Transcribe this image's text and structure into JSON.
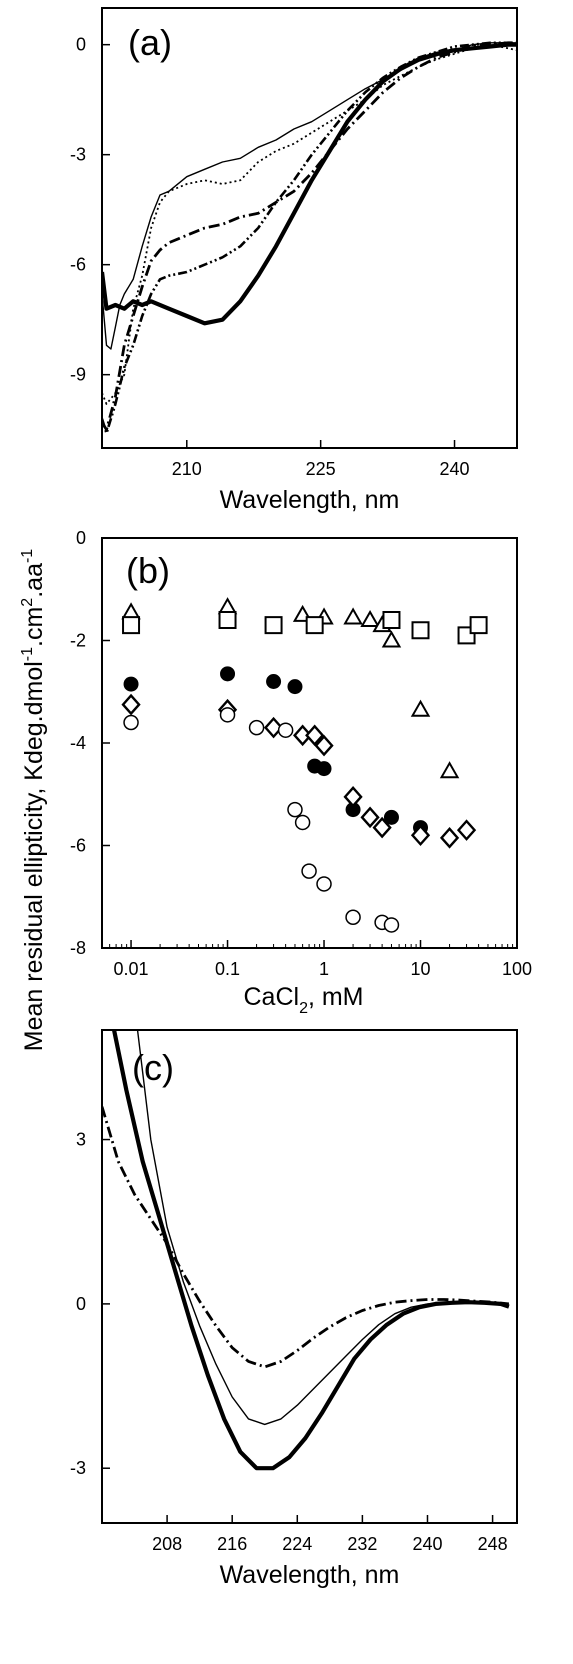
{
  "shared": {
    "ylabel_main": "Mean residual ellipticity, Kdeg.dmol",
    "ylabel_sup1": "-1",
    "ylabel_mid1": ".cm",
    "ylabel_sup2": "2",
    "ylabel_mid2": ".aa",
    "ylabel_sup3": "-1"
  },
  "chart_data": [
    {
      "panel": "(a)",
      "type": "line",
      "xlabel": "Wavelength, nm",
      "ylabel": "",
      "xlim": [
        200.5,
        247
      ],
      "ylim": [
        -11.0,
        1.0
      ],
      "xticks": [
        210,
        225,
        240
      ],
      "yticks": [
        0,
        -3,
        -6,
        -9
      ],
      "grid": false,
      "series": [
        {
          "style": "thin-solid",
          "x": [
            200.5,
            201,
            201.5,
            202,
            202.5,
            203,
            204,
            205,
            206,
            207,
            208,
            210,
            212,
            214,
            216,
            218,
            220,
            222,
            224,
            226,
            228,
            230,
            232,
            234,
            236,
            238,
            240,
            242,
            244,
            246,
            247
          ],
          "y": [
            -6.8,
            -8.2,
            -8.3,
            -7.7,
            -7.1,
            -6.8,
            -6.4,
            -5.5,
            -4.7,
            -4.1,
            -4.0,
            -3.6,
            -3.4,
            -3.2,
            -3.1,
            -2.8,
            -2.6,
            -2.3,
            -2.1,
            -1.8,
            -1.5,
            -1.2,
            -0.95,
            -0.7,
            -0.45,
            -0.3,
            -0.15,
            0.0,
            0.05,
            0.05,
            0.05
          ]
        },
        {
          "style": "dotted",
          "x": [
            200.5,
            201,
            202,
            203,
            204,
            205,
            206,
            207,
            208,
            210,
            212,
            214,
            216,
            218,
            220,
            222,
            224,
            226,
            228,
            230,
            232,
            234,
            236,
            238,
            240,
            242,
            244,
            246,
            247
          ],
          "y": [
            -9.5,
            -9.8,
            -9.5,
            -9.0,
            -7.2,
            -6.3,
            -5.0,
            -4.3,
            -4.0,
            -3.8,
            -3.7,
            -3.8,
            -3.7,
            -3.2,
            -2.9,
            -2.7,
            -2.4,
            -2.1,
            -1.8,
            -1.5,
            -1.1,
            -0.85,
            -0.6,
            -0.4,
            -0.25,
            -0.1,
            0.0,
            -0.1,
            -0.15
          ]
        },
        {
          "style": "dash-dot",
          "x": [
            200.5,
            201,
            202,
            203,
            204,
            205,
            206,
            207,
            208,
            210,
            212,
            214,
            216,
            218,
            220,
            222,
            224,
            226,
            228,
            230,
            232,
            234,
            236,
            238,
            240,
            242,
            244,
            246,
            247
          ],
          "y": [
            -10.3,
            -10.5,
            -9.6,
            -8.2,
            -7.4,
            -6.6,
            -5.9,
            -5.6,
            -5.4,
            -5.2,
            -5.0,
            -4.9,
            -4.7,
            -4.6,
            -4.3,
            -4.0,
            -3.5,
            -2.9,
            -2.3,
            -1.8,
            -1.3,
            -0.9,
            -0.6,
            -0.35,
            -0.2,
            -0.05,
            0.0,
            0.05,
            0.05
          ]
        },
        {
          "style": "dash-dot-dot",
          "x": [
            200.5,
            201,
            202,
            203,
            204,
            205,
            206,
            207,
            208,
            210,
            212,
            214,
            216,
            218,
            220,
            222,
            224,
            226,
            228,
            230,
            232,
            234,
            236,
            238,
            240,
            242,
            244,
            246,
            247
          ],
          "y": [
            -10.2,
            -10.6,
            -9.8,
            -8.8,
            -8.2,
            -7.4,
            -6.8,
            -6.4,
            -6.3,
            -6.2,
            -6.0,
            -5.8,
            -5.5,
            -5.0,
            -4.3,
            -3.7,
            -3.0,
            -2.4,
            -1.8,
            -1.3,
            -0.9,
            -0.6,
            -0.35,
            -0.2,
            -0.05,
            0.0,
            0.05,
            0.05,
            0.05
          ]
        },
        {
          "style": "thick-solid",
          "x": [
            200.5,
            201,
            202,
            203,
            204,
            205,
            206,
            208,
            210,
            212,
            214,
            216,
            218,
            220,
            222,
            224,
            226,
            228,
            230,
            232,
            234,
            236,
            238,
            240,
            242,
            244,
            246,
            247
          ],
          "y": [
            -6.2,
            -7.2,
            -7.1,
            -7.2,
            -7.0,
            -7.1,
            -7.0,
            -7.2,
            -7.4,
            -7.6,
            -7.5,
            -7.0,
            -6.3,
            -5.5,
            -4.6,
            -3.7,
            -2.9,
            -2.1,
            -1.5,
            -1.0,
            -0.65,
            -0.4,
            -0.25,
            -0.15,
            -0.1,
            -0.05,
            0.0,
            0.0
          ]
        }
      ]
    },
    {
      "panel": "(b)",
      "type": "scatter",
      "xlabel_main": "CaCl",
      "xlabel_sub": "2",
      "xlabel_tail": ", mM",
      "ylabel": "",
      "xscale": "log",
      "xlim": [
        0.005,
        100
      ],
      "ylim": [
        -8,
        0
      ],
      "xtick_values": [
        0.01,
        0.1,
        1,
        10,
        100
      ],
      "xtick_labels": [
        "0.01",
        "0.1",
        "1",
        "10",
        "100"
      ],
      "yticks": [
        0,
        -2,
        -4,
        -6,
        -8
      ],
      "grid": false,
      "series": [
        {
          "marker": "triangle-open",
          "x": [
            0.01,
            0.1,
            0.6,
            1.0,
            2.0,
            3.0,
            4.0,
            5.0,
            10,
            20
          ],
          "y": [
            -1.45,
            -1.35,
            -1.5,
            -1.55,
            -1.55,
            -1.6,
            -1.7,
            -2.0,
            -3.35,
            -4.55
          ]
        },
        {
          "marker": "square-open",
          "x": [
            0.01,
            0.1,
            0.3,
            0.8,
            5.0,
            10,
            30,
            40
          ],
          "y": [
            -1.7,
            -1.6,
            -1.7,
            -1.7,
            -1.6,
            -1.8,
            -1.9,
            -1.7
          ]
        },
        {
          "marker": "circle-filled",
          "x": [
            0.01,
            0.1,
            0.3,
            0.5,
            0.8,
            1.0,
            2.0,
            5.0,
            10
          ],
          "y": [
            -2.85,
            -2.65,
            -2.8,
            -2.9,
            -4.45,
            -4.5,
            -5.3,
            -5.45,
            -5.65
          ]
        },
        {
          "marker": "diamond-open",
          "x": [
            0.01,
            0.1,
            0.3,
            0.6,
            0.8,
            1.0,
            2.0,
            3.0,
            4.0,
            10,
            20,
            30
          ],
          "y": [
            -3.25,
            -3.35,
            -3.7,
            -3.85,
            -3.85,
            -4.05,
            -5.05,
            -5.45,
            -5.65,
            -5.8,
            -5.85,
            -5.7
          ]
        },
        {
          "marker": "circle-open",
          "x": [
            0.01,
            0.1,
            0.2,
            0.4,
            0.5,
            0.6,
            0.7,
            1.0,
            2.0,
            4.0,
            5.0
          ],
          "y": [
            -3.6,
            -3.45,
            -3.7,
            -3.75,
            -5.3,
            -5.55,
            -6.5,
            -6.75,
            -7.4,
            -7.5,
            -7.55
          ]
        }
      ]
    },
    {
      "panel": "(c)",
      "type": "line",
      "xlabel": "Wavelength, nm",
      "ylabel": "",
      "xlim": [
        200,
        251
      ],
      "ylim": [
        -4.0,
        5.0
      ],
      "xticks": [
        208,
        216,
        224,
        232,
        240,
        248
      ],
      "yticks": [
        3,
        0,
        -3
      ],
      "grid": false,
      "series": [
        {
          "style": "thick-solid",
          "x": [
            201.2,
            203,
            205,
            207,
            209,
            211,
            213,
            215,
            217,
            219,
            221,
            223,
            225,
            227,
            229,
            231,
            233,
            235,
            237,
            239,
            241,
            243,
            245,
            247,
            249,
            250
          ],
          "y": [
            5.2,
            3.9,
            2.6,
            1.6,
            0.6,
            -0.4,
            -1.3,
            -2.1,
            -2.7,
            -3.0,
            -3.0,
            -2.8,
            -2.45,
            -2.0,
            -1.5,
            -1.0,
            -0.65,
            -0.38,
            -0.18,
            -0.06,
            0.0,
            0.02,
            0.03,
            0.02,
            0.0,
            -0.05
          ]
        },
        {
          "style": "thin-solid",
          "x": [
            204.2,
            206,
            208,
            210,
            212,
            214,
            216,
            218,
            220,
            222,
            224,
            226,
            228,
            230,
            232,
            234,
            236,
            238,
            240,
            242,
            244,
            246,
            248,
            250
          ],
          "y": [
            5.2,
            3.0,
            1.4,
            0.4,
            -0.4,
            -1.1,
            -1.7,
            -2.1,
            -2.2,
            -2.1,
            -1.85,
            -1.55,
            -1.25,
            -0.95,
            -0.65,
            -0.38,
            -0.18,
            -0.06,
            0.0,
            0.02,
            0.03,
            0.02,
            0.0,
            -0.05
          ]
        },
        {
          "style": "dash-dot",
          "x": [
            200,
            202,
            204,
            206,
            208,
            210,
            212,
            214,
            216,
            218,
            220,
            222,
            224,
            226,
            228,
            230,
            232,
            234,
            236,
            238,
            240,
            242,
            244,
            246,
            248,
            250
          ],
          "y": [
            3.6,
            2.6,
            2.0,
            1.55,
            1.1,
            0.55,
            0.05,
            -0.4,
            -0.8,
            -1.05,
            -1.15,
            -1.05,
            -0.85,
            -0.62,
            -0.42,
            -0.25,
            -0.12,
            -0.03,
            0.03,
            0.06,
            0.08,
            0.08,
            0.07,
            0.05,
            0.03,
            0.0
          ]
        }
      ]
    }
  ]
}
